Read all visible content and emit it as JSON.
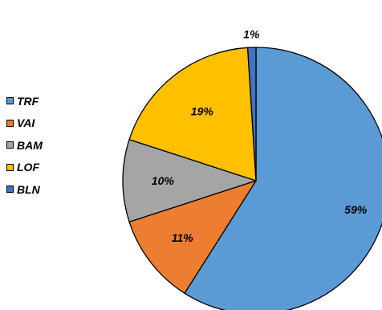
{
  "chart_data": {
    "type": "pie",
    "categories": [
      "TRF",
      "VAI",
      "BAM",
      "LOF",
      "BLN"
    ],
    "values": [
      59,
      11,
      10,
      19,
      1
    ],
    "value_labels": [
      "59%",
      "11%",
      "10%",
      "19%",
      "1%"
    ],
    "colors": [
      "#5B9BD5",
      "#ED7D31",
      "#A5A5A5",
      "#FFC000",
      "#4472C4"
    ],
    "start_angle_deg": 0,
    "direction": "clockwise",
    "legend": {
      "position": "left",
      "entries": [
        "TRF",
        "VAI",
        "BAM",
        "LOF",
        "BLN"
      ]
    }
  }
}
